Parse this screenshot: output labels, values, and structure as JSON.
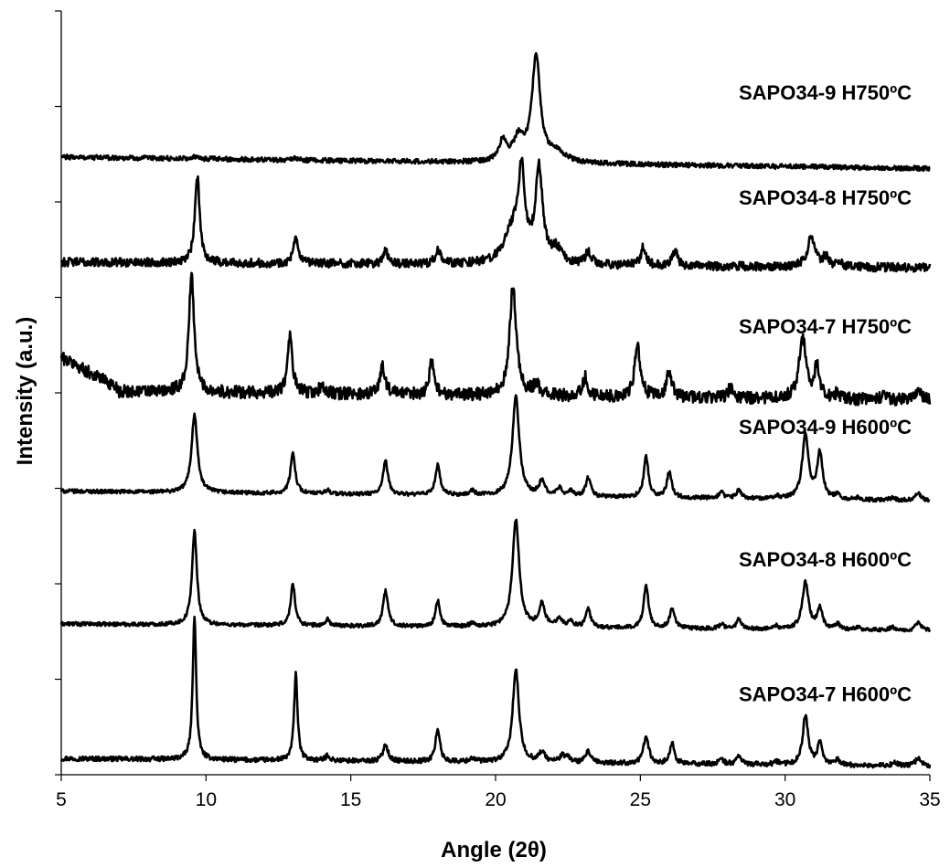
{
  "chart_data": {
    "type": "line",
    "title": "",
    "xlabel": "Angle (2θ)",
    "ylabel": "Intensity (a.u.)",
    "xlim": [
      5,
      35
    ],
    "xticks": [
      5,
      10,
      15,
      20,
      25,
      30,
      35
    ],
    "xtick_labels": [
      "5",
      "10",
      "15",
      "20",
      "25",
      "30",
      "35"
    ],
    "ylim": [
      0,
      8
    ],
    "y_tick_count": 8,
    "y_tick_labels_shown": false,
    "grid": false,
    "legend": "inline labels at right of each trace",
    "line_color": "#000000",
    "series": [
      {
        "name": "SAPO34-7 H600ºC",
        "baseline": 0.17,
        "tilt": -0.08,
        "noise": 0.025,
        "peaks": [
          [
            9.6,
            1.52,
            0.07
          ],
          [
            13.1,
            0.92,
            0.07
          ],
          [
            14.2,
            0.06,
            0.08
          ],
          [
            16.2,
            0.18,
            0.1
          ],
          [
            18.0,
            0.35,
            0.09
          ],
          [
            19.2,
            0.04,
            0.1
          ],
          [
            20.7,
            0.97,
            0.13
          ],
          [
            21.6,
            0.1,
            0.13
          ],
          [
            22.3,
            0.06,
            0.12
          ],
          [
            22.5,
            0.05,
            0.12
          ],
          [
            23.2,
            0.12,
            0.1
          ],
          [
            25.2,
            0.3,
            0.1
          ],
          [
            26.1,
            0.22,
            0.09
          ],
          [
            27.8,
            0.05,
            0.1
          ],
          [
            28.4,
            0.09,
            0.1
          ],
          [
            29.7,
            0.03,
            0.1
          ],
          [
            30.7,
            0.52,
            0.11
          ],
          [
            31.2,
            0.22,
            0.1
          ],
          [
            31.8,
            0.06,
            0.1
          ],
          [
            33.8,
            0.03,
            0.12
          ],
          [
            34.6,
            0.09,
            0.11
          ]
        ]
      },
      {
        "name": "SAPO34-8 H600ºC",
        "baseline": 1.58,
        "tilt": -0.07,
        "noise": 0.02,
        "peaks": [
          [
            9.6,
            0.98,
            0.1
          ],
          [
            13.0,
            0.44,
            0.09
          ],
          [
            14.2,
            0.07,
            0.08
          ],
          [
            16.2,
            0.37,
            0.1
          ],
          [
            18.0,
            0.27,
            0.09
          ],
          [
            19.2,
            0.04,
            0.1
          ],
          [
            20.7,
            1.13,
            0.14
          ],
          [
            21.6,
            0.24,
            0.12
          ],
          [
            22.2,
            0.1,
            0.11
          ],
          [
            22.6,
            0.06,
            0.11
          ],
          [
            23.2,
            0.19,
            0.1
          ],
          [
            25.2,
            0.45,
            0.1
          ],
          [
            26.1,
            0.21,
            0.1
          ],
          [
            27.8,
            0.05,
            0.1
          ],
          [
            28.4,
            0.1,
            0.1
          ],
          [
            29.7,
            0.03,
            0.1
          ],
          [
            30.7,
            0.49,
            0.13
          ],
          [
            31.2,
            0.21,
            0.11
          ],
          [
            31.8,
            0.06,
            0.1
          ],
          [
            32.5,
            0.03,
            0.1
          ],
          [
            33.7,
            0.03,
            0.12
          ],
          [
            34.6,
            0.08,
            0.11
          ]
        ]
      },
      {
        "name": "SAPO34-9 H600ºC",
        "baseline": 2.97,
        "tilt": -0.1,
        "noise": 0.02,
        "peaks": [
          [
            9.6,
            0.82,
            0.12
          ],
          [
            13.0,
            0.42,
            0.1
          ],
          [
            14.2,
            0.04,
            0.1
          ],
          [
            16.2,
            0.35,
            0.1
          ],
          [
            18.0,
            0.31,
            0.1
          ],
          [
            19.2,
            0.05,
            0.1
          ],
          [
            20.7,
            1.05,
            0.14
          ],
          [
            21.6,
            0.15,
            0.12
          ],
          [
            22.2,
            0.08,
            0.11
          ],
          [
            22.6,
            0.05,
            0.11
          ],
          [
            23.2,
            0.2,
            0.1
          ],
          [
            25.2,
            0.42,
            0.1
          ],
          [
            26.0,
            0.27,
            0.1
          ],
          [
            27.8,
            0.06,
            0.1
          ],
          [
            28.4,
            0.09,
            0.1
          ],
          [
            29.7,
            0.03,
            0.1
          ],
          [
            30.7,
            0.67,
            0.13
          ],
          [
            31.2,
            0.48,
            0.11
          ],
          [
            31.8,
            0.05,
            0.1
          ],
          [
            32.5,
            0.02,
            0.1
          ],
          [
            33.7,
            0.02,
            0.12
          ],
          [
            34.6,
            0.08,
            0.11
          ]
        ]
      },
      {
        "name": "SAPO34-7 H750ºC",
        "baseline": 4.02,
        "tilt": -0.1,
        "noise": 0.065,
        "hump": [
          5.2,
          7.0,
          0.32
        ],
        "peaks": [
          [
            9.5,
            1.22,
            0.11
          ],
          [
            12.9,
            0.59,
            0.1
          ],
          [
            14.0,
            0.08,
            0.1
          ],
          [
            16.1,
            0.3,
            0.11
          ],
          [
            17.8,
            0.36,
            0.1
          ],
          [
            20.6,
            1.14,
            0.14
          ],
          [
            21.4,
            0.1,
            0.15
          ],
          [
            23.1,
            0.2,
            0.11
          ],
          [
            24.9,
            0.52,
            0.12
          ],
          [
            26.0,
            0.28,
            0.1
          ],
          [
            28.1,
            0.1,
            0.1
          ],
          [
            30.6,
            0.65,
            0.14
          ],
          [
            31.1,
            0.32,
            0.12
          ],
          [
            31.8,
            0.06,
            0.1
          ],
          [
            33.4,
            0.03,
            0.12
          ],
          [
            34.6,
            0.08,
            0.12
          ]
        ]
      },
      {
        "name": "SAPO34-8 H750ºC",
        "baseline": 5.37,
        "tilt": -0.06,
        "noise": 0.045,
        "peaks": [
          [
            9.7,
            0.9,
            0.1
          ],
          [
            13.1,
            0.25,
            0.1
          ],
          [
            16.2,
            0.15,
            0.09
          ],
          [
            18.0,
            0.16,
            0.1
          ],
          [
            20.6,
            0.35,
            0.35
          ],
          [
            20.9,
            0.85,
            0.13
          ],
          [
            21.5,
            0.98,
            0.15
          ],
          [
            22.1,
            0.14,
            0.2
          ],
          [
            23.2,
            0.13,
            0.12
          ],
          [
            25.1,
            0.19,
            0.1
          ],
          [
            26.2,
            0.16,
            0.1
          ],
          [
            30.9,
            0.32,
            0.15
          ],
          [
            31.4,
            0.1,
            0.12
          ],
          [
            31.9,
            0.04,
            0.1
          ]
        ]
      },
      {
        "name": "SAPO34-9 H750ºC",
        "baseline": 6.47,
        "tilt": -0.12,
        "noise": 0.025,
        "peaks": [
          [
            20.25,
            0.22,
            0.15
          ],
          [
            20.8,
            0.24,
            0.22
          ],
          [
            21.4,
            1.1,
            0.17
          ],
          [
            22.1,
            0.1,
            0.4
          ],
          [
            9.6,
            0.02,
            0.1
          ],
          [
            13.0,
            0.02,
            0.1
          ]
        ]
      }
    ]
  }
}
